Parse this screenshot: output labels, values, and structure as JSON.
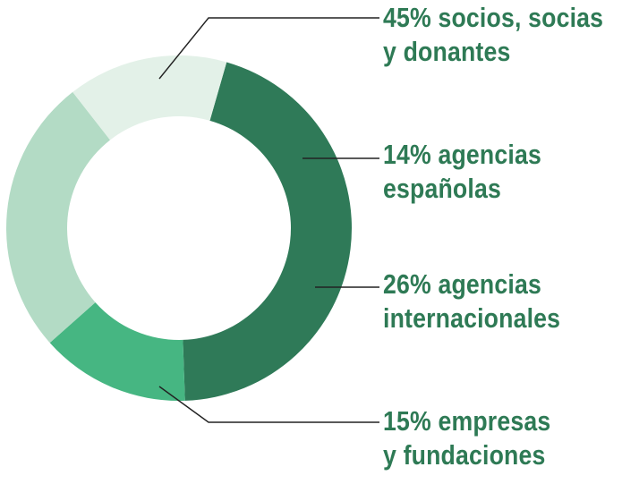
{
  "chart_data": {
    "type": "pie",
    "donut": true,
    "slices": [
      {
        "value": 45,
        "percent_label": "45%",
        "line1": "socios, socias",
        "line2": "y donantes",
        "color": "#2f7a58"
      },
      {
        "value": 14,
        "percent_label": "14%",
        "line1": "agencias",
        "line2": "españolas",
        "color": "#46b682"
      },
      {
        "value": 26,
        "percent_label": "26%",
        "line1": "agencias",
        "line2": "internacionales",
        "color": "#b3dbc5"
      },
      {
        "value": 15,
        "percent_label": "15%",
        "line1": "empresas",
        "line2": "y fundaciones",
        "color": "#e3f1e8"
      }
    ],
    "text_color": "#2e7a55",
    "leader_color": "#222222"
  }
}
